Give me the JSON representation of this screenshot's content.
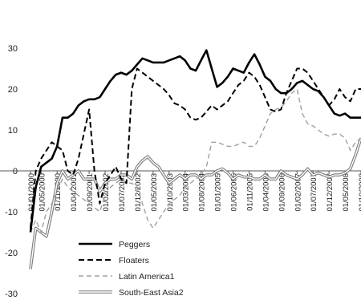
{
  "chart_data": {
    "type": "line",
    "title": "",
    "xlabel": "",
    "ylabel": "",
    "ylim": [
      -30,
      30
    ],
    "yticks": [
      -30,
      -20,
      -10,
      0,
      10,
      20,
      30
    ],
    "grid": false,
    "legend_position": "bottom-center",
    "x_tick_labels": [
      "01/01/2000",
      "01/05/2000",
      "01/11/2000",
      "01/04/2001",
      "01/09/2001",
      "01/02/2002",
      "01/07/2002",
      "01/12/2002",
      "01/05/2003",
      "01/10/2003",
      "01/03/2004",
      "01/08/2004",
      "01/01/2005",
      "01/06/2005",
      "01/11/2005",
      "01/04/2006",
      "01/09/2006",
      "01/02/2007",
      "01/07/2007",
      "01/12/2007",
      "01/05/2008",
      "01/10/2008"
    ],
    "x_tick_index": [
      0,
      2,
      5,
      8,
      11,
      14,
      17,
      20,
      23,
      26,
      29,
      32,
      35,
      38,
      41,
      44,
      47,
      50,
      53,
      56,
      59,
      62
    ],
    "n_points": 63,
    "series": [
      {
        "name": "Peggers",
        "style": "solid-thick",
        "color": "#000000",
        "values": [
          -15,
          -4,
          1,
          2,
          3,
          6,
          13,
          13,
          14,
          16,
          17,
          17.5,
          17.5,
          18,
          20,
          22,
          23.5,
          24,
          23.5,
          24.5,
          26,
          27.5,
          27,
          26.5,
          26.5,
          26.5,
          27,
          27.5,
          28,
          27,
          25,
          24.5,
          27,
          29.5,
          25,
          20.5,
          21.5,
          23,
          25,
          24.5,
          24,
          26.5,
          28.5,
          26,
          23,
          22,
          20,
          19,
          19,
          20,
          21.5,
          22,
          21,
          20,
          19.5,
          18,
          16,
          14,
          13.5,
          14,
          13,
          13,
          13
        ]
      },
      {
        "name": "Floaters",
        "style": "dashed",
        "color": "#000000",
        "values": [
          -14,
          0,
          3,
          5,
          7,
          6,
          5,
          0,
          -1,
          3,
          9,
          15,
          0,
          -8,
          -3,
          -1,
          1,
          -2,
          -3,
          20,
          25,
          24,
          23,
          22,
          21,
          20,
          18.5,
          16.5,
          16,
          15,
          13,
          12.5,
          13,
          14.5,
          16,
          15,
          16,
          17,
          19,
          21,
          22,
          24,
          23,
          21,
          18,
          15,
          14.5,
          15,
          19,
          22,
          25,
          25,
          24,
          22,
          20,
          18,
          16,
          17.5,
          20,
          18,
          17,
          20,
          20
        ]
      },
      {
        "name": "Latin America1",
        "style": "dashed-light",
        "color": "#9a9a9a",
        "values": [
          -15,
          -12,
          -15,
          -10,
          -8,
          -5,
          -2,
          -4,
          -5,
          -6,
          -7,
          -8,
          -9,
          -10,
          -6,
          -4,
          -3,
          -2,
          -3,
          -3,
          -4,
          -8,
          -12,
          -14,
          -12,
          -10,
          -8,
          -7,
          -6,
          -4,
          -3,
          -2,
          -1,
          1,
          7,
          7,
          6.5,
          6,
          6,
          6.5,
          7,
          6,
          6,
          8,
          11,
          14,
          15,
          15.5,
          17,
          19,
          20,
          14,
          11.5,
          11,
          10,
          9,
          8.5,
          9,
          9,
          8,
          5,
          7,
          8
        ]
      },
      {
        "name": "South-East Asia2",
        "style": "double",
        "color": "#7a7a7a",
        "values": [
          -24,
          -14,
          -15,
          -16,
          -10,
          -3,
          0,
          -2,
          -1,
          0,
          -2,
          -2,
          -2,
          -5,
          -3,
          -2,
          -2,
          -1,
          -1,
          -2,
          1,
          2.5,
          3.5,
          2,
          1,
          -1,
          -3,
          -2,
          -1,
          -2,
          -1,
          -1,
          -2,
          -1,
          -1,
          0,
          0.5,
          -0.5,
          -2,
          -1,
          -1.5,
          -1.5,
          -2,
          -2,
          -1,
          -2,
          -2,
          0,
          -1,
          -1.5,
          -2,
          -1,
          0.5,
          -1,
          -0.5,
          -1,
          -1.5,
          -1,
          -1,
          -0.5,
          0.5,
          4,
          8
        ]
      }
    ]
  }
}
